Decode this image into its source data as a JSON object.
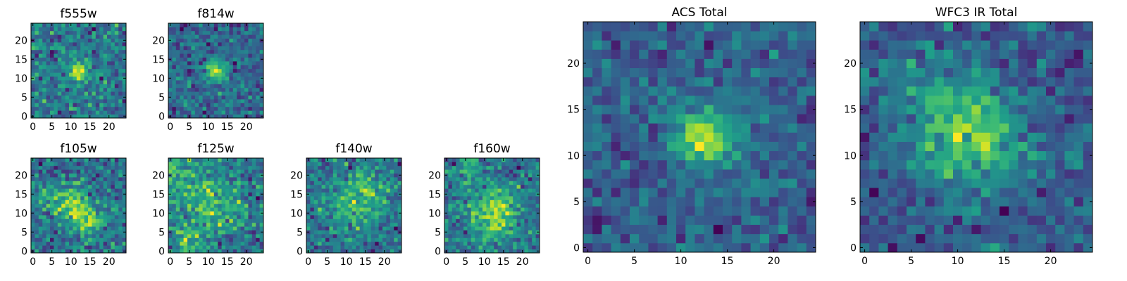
{
  "chart_data": [
    {
      "type": "heatmap",
      "title": "f555w",
      "xticks": [
        "0",
        "5",
        "10",
        "15",
        "20"
      ],
      "yticks": [
        "0",
        "5",
        "10",
        "15",
        "20"
      ],
      "xlim": [
        -0.5,
        24.5
      ],
      "ylim": [
        -0.5,
        24.5
      ],
      "colormap": "viridis",
      "grid_size": 25,
      "hotspots": [
        {
          "x": 12,
          "y": 12,
          "r": 1.8,
          "amp": 0.95
        }
      ],
      "noise": 0.62,
      "seed": 11
    },
    {
      "type": "heatmap",
      "title": "f814w",
      "xticks": [
        "0",
        "5",
        "10",
        "15",
        "20"
      ],
      "yticks": [
        "0",
        "5",
        "10",
        "15",
        "20"
      ],
      "xlim": [
        -0.5,
        24.5
      ],
      "ylim": [
        -0.5,
        24.5
      ],
      "colormap": "viridis",
      "grid_size": 25,
      "hotspots": [
        {
          "x": 12,
          "y": 12,
          "r": 2.0,
          "amp": 0.95
        }
      ],
      "noise": 0.6,
      "seed": 23
    },
    {
      "type": "heatmap",
      "title": "f105w",
      "xticks": [
        "0",
        "5",
        "10",
        "15",
        "20"
      ],
      "yticks": [
        "0",
        "5",
        "10",
        "15",
        "20"
      ],
      "xlim": [
        -0.5,
        24.5
      ],
      "ylim": [
        -0.5,
        24.5
      ],
      "colormap": "viridis",
      "grid_size": 25,
      "hotspots": [
        {
          "x": 11,
          "y": 12,
          "r": 3.5,
          "amp": 0.55
        },
        {
          "x": 15,
          "y": 7,
          "r": 2.5,
          "amp": 0.5
        },
        {
          "x": 4,
          "y": 14,
          "r": 2.5,
          "amp": 0.3
        }
      ],
      "noise": 0.55,
      "seed": 37
    },
    {
      "type": "heatmap",
      "title": "f125w",
      "xticks": [
        "0",
        "5",
        "10",
        "15",
        "20"
      ],
      "yticks": [
        "0",
        "5",
        "10",
        "15",
        "20"
      ],
      "xlim": [
        -0.5,
        24.5
      ],
      "ylim": [
        -0.5,
        24.5
      ],
      "colormap": "viridis",
      "grid_size": 25,
      "hotspots": [
        {
          "x": 12,
          "y": 12,
          "r": 5,
          "amp": 0.35
        },
        {
          "x": 2,
          "y": 20,
          "r": 4,
          "amp": 0.3
        },
        {
          "x": 5,
          "y": 3,
          "r": 3,
          "amp": 0.3
        }
      ],
      "noise": 0.5,
      "seed": 41
    },
    {
      "type": "heatmap",
      "title": "f140w",
      "xticks": [
        "0",
        "5",
        "10",
        "15",
        "20"
      ],
      "yticks": [
        "0",
        "5",
        "10",
        "15",
        "20"
      ],
      "xlim": [
        -0.5,
        24.5
      ],
      "ylim": [
        -0.5,
        24.5
      ],
      "colormap": "viridis",
      "grid_size": 25,
      "hotspots": [
        {
          "x": 12,
          "y": 12,
          "r": 5,
          "amp": 0.35
        },
        {
          "x": 16,
          "y": 18,
          "r": 3,
          "amp": 0.3
        }
      ],
      "noise": 0.5,
      "seed": 53
    },
    {
      "type": "heatmap",
      "title": "f160w",
      "xticks": [
        "0",
        "5",
        "10",
        "15",
        "20"
      ],
      "yticks": [
        "0",
        "5",
        "10",
        "15",
        "20"
      ],
      "xlim": [
        -0.5,
        24.5
      ],
      "ylim": [
        -0.5,
        24.5
      ],
      "colormap": "viridis",
      "grid_size": 25,
      "hotspots": [
        {
          "x": 12,
          "y": 8,
          "r": 4,
          "amp": 0.5
        },
        {
          "x": 14,
          "y": 13,
          "r": 3,
          "amp": 0.35
        },
        {
          "x": 6,
          "y": 20,
          "r": 3,
          "amp": 0.3
        }
      ],
      "noise": 0.5,
      "seed": 67
    },
    {
      "type": "heatmap",
      "title": "ACS Total",
      "xticks": [
        "0",
        "5",
        "10",
        "15",
        "20"
      ],
      "yticks": [
        "0",
        "5",
        "10",
        "15",
        "20"
      ],
      "xlim": [
        -0.5,
        24.5
      ],
      "ylim": [
        -0.5,
        24.5
      ],
      "colormap": "viridis",
      "grid_size": 25,
      "hotspots": [
        {
          "x": 12.5,
          "y": 12,
          "r": 2.2,
          "amp": 1.0
        }
      ],
      "noise": 0.45,
      "seed": 79
    },
    {
      "type": "heatmap",
      "title": "WFC3 IR Total",
      "xticks": [
        "0",
        "5",
        "10",
        "15",
        "20"
      ],
      "yticks": [
        "0",
        "5",
        "10",
        "15",
        "20"
      ],
      "xlim": [
        -0.5,
        24.5
      ],
      "ylim": [
        -0.5,
        24.5
      ],
      "colormap": "viridis",
      "grid_size": 25,
      "hotspots": [
        {
          "x": 12,
          "y": 11.5,
          "r": 4.5,
          "amp": 0.55
        },
        {
          "x": 9,
          "y": 15,
          "r": 4,
          "amp": 0.25
        },
        {
          "x": 3,
          "y": 20,
          "r": 3,
          "amp": 0.2
        }
      ],
      "noise": 0.45,
      "seed": 97
    }
  ]
}
